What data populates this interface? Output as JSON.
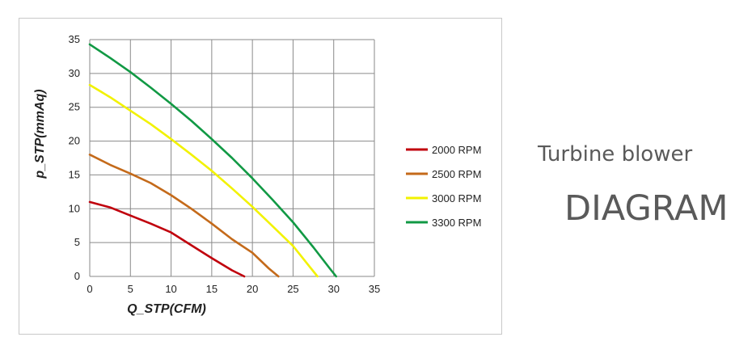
{
  "side_text": {
    "caption": "Turbine blower",
    "heading": "DIAGRAM"
  },
  "chart_data": {
    "type": "line",
    "xlabel": "Q_STP(CFM)",
    "ylabel": "p_STP(mmAq)",
    "xlim": [
      0,
      35
    ],
    "ylim": [
      0,
      35
    ],
    "xticks": [
      0,
      5,
      10,
      15,
      20,
      25,
      30,
      35
    ],
    "yticks": [
      0,
      5,
      10,
      15,
      20,
      25,
      30,
      35
    ],
    "grid": true,
    "legend": "right",
    "series": [
      {
        "name": "2000 RPM",
        "color": "#c0000c",
        "points": [
          [
            0,
            11
          ],
          [
            2.5,
            10.2
          ],
          [
            5,
            9
          ],
          [
            7.5,
            7.8
          ],
          [
            10,
            6.5
          ],
          [
            12.5,
            4.6
          ],
          [
            15,
            2.7
          ],
          [
            17.5,
            0.9
          ],
          [
            19,
            0
          ]
        ]
      },
      {
        "name": "2500 RPM",
        "color": "#c46a1a",
        "points": [
          [
            0,
            18
          ],
          [
            2.5,
            16.5
          ],
          [
            5,
            15.2
          ],
          [
            7.5,
            13.8
          ],
          [
            10,
            12
          ],
          [
            12.5,
            10
          ],
          [
            15,
            7.8
          ],
          [
            17.5,
            5.5
          ],
          [
            20,
            3.5
          ],
          [
            22,
            1.2
          ],
          [
            23.2,
            0
          ]
        ]
      },
      {
        "name": "3000 RPM",
        "color": "#f2f200",
        "points": [
          [
            0,
            28.3
          ],
          [
            2.5,
            26.5
          ],
          [
            5,
            24.5
          ],
          [
            7.5,
            22.5
          ],
          [
            10,
            20.3
          ],
          [
            12.5,
            18
          ],
          [
            15,
            15.6
          ],
          [
            17.5,
            13
          ],
          [
            20,
            10.3
          ],
          [
            22.5,
            7.4
          ],
          [
            25,
            4.5
          ],
          [
            27,
            1.5
          ],
          [
            28,
            0
          ]
        ]
      },
      {
        "name": "3300 RPM",
        "color": "#119944",
        "points": [
          [
            0,
            34.3
          ],
          [
            2.5,
            32.3
          ],
          [
            5,
            30.2
          ],
          [
            7.5,
            27.9
          ],
          [
            10,
            25.5
          ],
          [
            12.5,
            23
          ],
          [
            15,
            20.3
          ],
          [
            17.5,
            17.5
          ],
          [
            20,
            14.5
          ],
          [
            22.5,
            11.3
          ],
          [
            25,
            8
          ],
          [
            27.5,
            4.3
          ],
          [
            29.5,
            1.2
          ],
          [
            30.3,
            0
          ]
        ]
      }
    ]
  }
}
